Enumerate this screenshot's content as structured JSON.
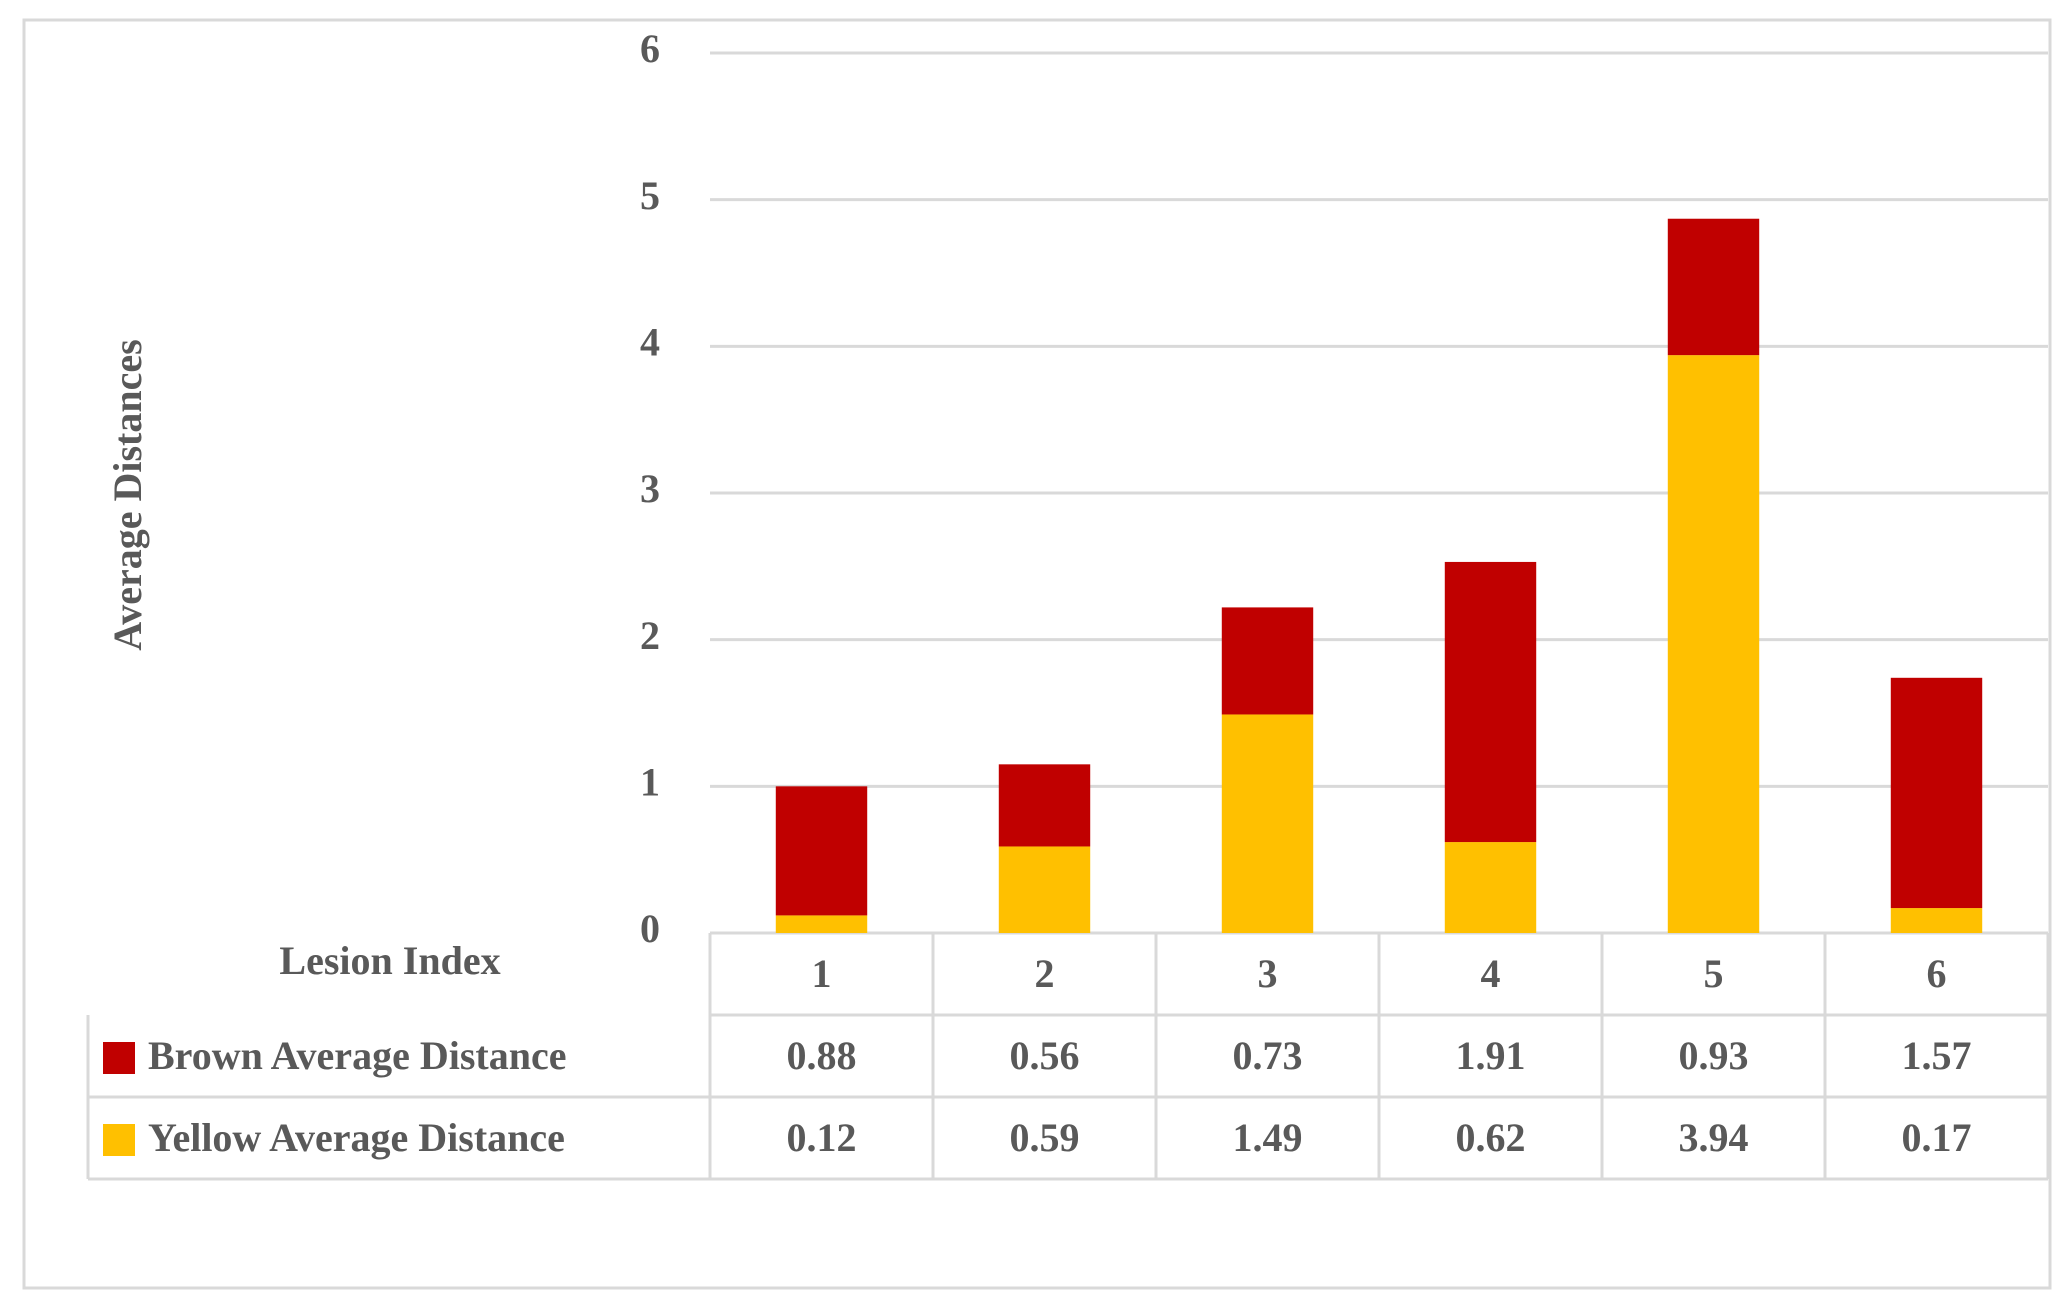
{
  "chart_data": {
    "type": "stacked_bar",
    "y_label": "Average Distances",
    "x_label": "Lesion Index",
    "categories": [
      "1",
      "2",
      "3",
      "4",
      "5",
      "6"
    ],
    "series": [
      {
        "name": "Brown Average Distance",
        "color": "#c00000",
        "values": [
          0.88,
          0.56,
          0.73,
          1.91,
          0.93,
          1.57
        ]
      },
      {
        "name": "Yellow Average Distance",
        "color": "#ffc000",
        "values": [
          0.12,
          0.59,
          1.49,
          0.62,
          3.94,
          0.17
        ]
      }
    ],
    "ylim": [
      0,
      6
    ],
    "yticks": [
      0,
      1,
      2,
      3,
      4,
      5,
      6
    ],
    "grid": true,
    "data_table": true
  }
}
